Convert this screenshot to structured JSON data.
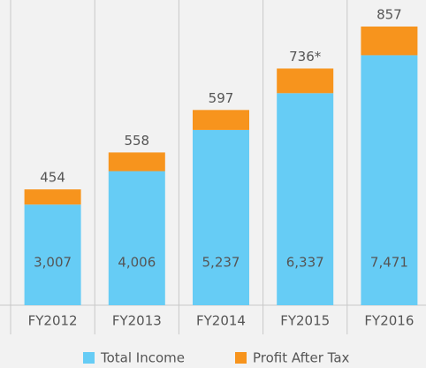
{
  "chart_data": {
    "type": "stacked-bar",
    "categories": [
      "FY2012",
      "FY2013",
      "FY2014",
      "FY2015",
      "FY2016"
    ],
    "series": [
      {
        "name": "Total Income",
        "color": "#66ccf5",
        "values": [
          3007,
          4006,
          5237,
          6337,
          7471
        ],
        "value_labels": [
          "3,007",
          "4,006",
          "5,237",
          "6,337",
          "7,471"
        ]
      },
      {
        "name": "Profit After Tax",
        "color": "#f7941d",
        "values": [
          454,
          558,
          597,
          736,
          857
        ],
        "value_labels": [
          "454",
          "558",
          "597",
          "736*",
          "857"
        ]
      }
    ],
    "legend": "bottom"
  }
}
